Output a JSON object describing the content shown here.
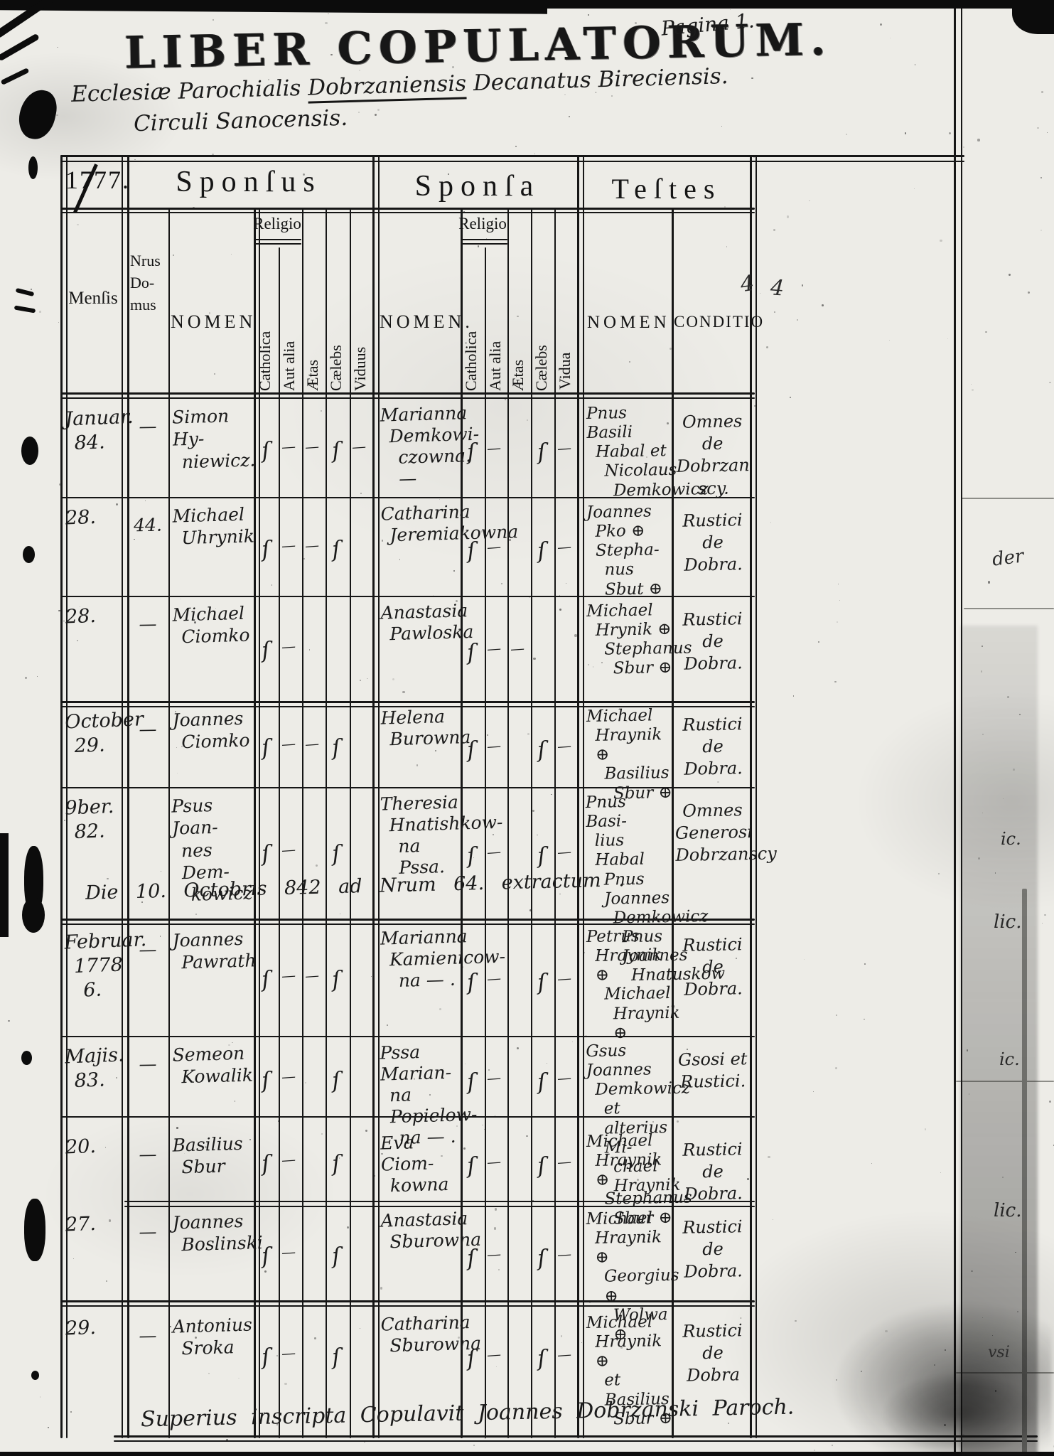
{
  "page": {
    "pagina": "Pagina 1.",
    "margin_marks": [
      "4",
      "4"
    ],
    "fragments": [
      "der",
      "ic.",
      "lic.",
      "ic.",
      "lic.",
      "vsi"
    ]
  },
  "title": "LIBER COPULATORUM.",
  "subtitle": {
    "line1_pre": "Ecclesiæ Parochialis",
    "line1_underlined": "Dobrzaniensis",
    "line1_post": "Decanatus Bireciensis.",
    "line2": "Circuli Sanocensis."
  },
  "header": {
    "year": "1777.",
    "sponsus": "Sponſus",
    "sponsa": "Sponſa",
    "testes": "Teſtes",
    "mensis": "Menſis",
    "nrus_domus": [
      "Nrus",
      "Do-",
      "mus"
    ],
    "nomen_sponsus": "NOMEN",
    "nomen_sponsa": "NOMEN.",
    "nomen_testes": "NOMEN",
    "conditio": "CONDITIO",
    "religio": "Religio",
    "catholica": "Catholica",
    "aut_alia": "Aut alia",
    "aetas": "Ætas",
    "caelebs": "Cælebs",
    "viduus": "Viduus",
    "vidua": "Vidua"
  },
  "rows": [
    {
      "mensis": [
        "Januar.",
        "84."
      ],
      "nrus": "—",
      "sponsus": [
        "Simon Hy-",
        "niewicz."
      ],
      "sp_marks": [
        "ſ",
        "—",
        "—",
        "ſ",
        "—"
      ],
      "sponsa": [
        "Marianna",
        "Demkowi-",
        "czowna. —"
      ],
      "sa_marks": [
        "ſ",
        "—",
        "",
        "ſ",
        "—"
      ],
      "testes": [
        "Pnus Basili",
        "Habal et",
        "Nicolaus",
        "Demkowicz"
      ],
      "conditio": [
        "Omnes",
        "de Dobrzan",
        "scy."
      ]
    },
    {
      "mensis": [
        "28."
      ],
      "nrus": "44.",
      "sponsus": [
        "Michael",
        "Uhrynik"
      ],
      "sp_marks": [
        "ſ",
        "—",
        "—",
        "ſ",
        ""
      ],
      "sponsa": [
        "Catharina",
        "Jeremiakowna"
      ],
      "sa_marks": [
        "ſ",
        "—",
        "",
        "ſ",
        "—"
      ],
      "testes": [
        "Joannes",
        "Pko ⊕ Stepha-",
        "nus Sbut ⊕"
      ],
      "conditio": [
        "Rustici",
        "de",
        "Dobra."
      ]
    },
    {
      "mensis": [
        "28."
      ],
      "nrus": "—",
      "sponsus": [
        "Michael",
        "Ciomko"
      ],
      "sp_marks": [
        "ſ",
        "—",
        "",
        "",
        ""
      ],
      "sponsa": [
        "Anastasia",
        "Pawloska"
      ],
      "sa_marks": [
        "ſ",
        "—",
        "—",
        "",
        ""
      ],
      "testes": [
        "Michael",
        "Hrynik ⊕",
        "Stephanus",
        "Sbur ⊕"
      ],
      "conditio": [
        "Rustici",
        "de",
        "Dobra."
      ]
    },
    {
      "mensis": [
        "October",
        "29."
      ],
      "nrus": "—",
      "sponsus": [
        "Joannes",
        "Ciomko"
      ],
      "sp_marks": [
        "ſ",
        "—",
        "—",
        "ſ",
        ""
      ],
      "sponsa": [
        "Helena",
        "Burowna"
      ],
      "sa_marks": [
        "ſ",
        "—",
        "",
        "ſ",
        "—"
      ],
      "testes": [
        "Michael",
        "Hraynik ⊕",
        "Basilius",
        "Sbur ⊕"
      ],
      "conditio": [
        "Rustici",
        "de",
        "Dobra."
      ]
    },
    {
      "mensis": [
        "9ber.",
        "82."
      ],
      "nrus": "",
      "sponsus": [
        "Psus Joan-",
        "nes Dem-",
        "kowicz"
      ],
      "sp_marks": [
        "ſ",
        "—",
        "",
        "ſ",
        ""
      ],
      "sponsa": [
        "Theresia",
        "Hnatishkow-",
        "na Pssa."
      ],
      "sa_marks": [
        "ſ",
        "—",
        "",
        "ſ",
        "—"
      ],
      "testes": [
        "Pnus Basi-",
        "lius Habal",
        "Pnus Joannes",
        "Demkowicz",
        "Pnus Joannes",
        "Hnatuskow"
      ],
      "conditio": [
        "Omnes",
        "Generosi",
        "Dobrzanscy"
      ],
      "note": "Die 10. Octobris 842 ad  Nrum  64.  extractum ."
    },
    {
      "mensis": [
        "Februar.",
        "1778",
        "6."
      ],
      "nrus": "—",
      "sponsus": [
        "Joannes",
        "Pawrath"
      ],
      "sp_marks": [
        "ſ",
        "—",
        "—",
        "ſ",
        ""
      ],
      "sponsa": [
        "Marianna",
        "Kamienicow-",
        "na — ."
      ],
      "sa_marks": [
        "ſ",
        "—",
        "",
        "ſ",
        "—"
      ],
      "testes": [
        "Petrus",
        "Hraynik ⊕",
        "Michael",
        "Hraynik ⊕"
      ],
      "conditio": [
        "Rustici",
        "de",
        "Dobra."
      ]
    },
    {
      "mensis": [
        "Majis.",
        "83."
      ],
      "nrus": "—",
      "sponsus": [
        "Semeon",
        "Kowalik"
      ],
      "sp_marks": [
        "ſ",
        "—",
        "",
        "ſ",
        ""
      ],
      "sponsa": [
        "Pssa Marian-",
        "na Popielow-",
        "na — ."
      ],
      "sa_marks": [
        "ſ",
        "—",
        "",
        "ſ",
        "—"
      ],
      "testes": [
        "Gsus Joannes",
        "Demkowicz",
        "et alterius Mi-",
        "chael Hraynik"
      ],
      "conditio": [
        "Gsosi et",
        "Rustici."
      ]
    },
    {
      "mensis": [
        "20."
      ],
      "nrus": "—",
      "sponsus": [
        "Basilius",
        "Sbur"
      ],
      "sp_marks": [
        "ſ",
        "—",
        "",
        "ſ",
        ""
      ],
      "sponsa": [
        "Eva Ciom-",
        "kowna"
      ],
      "sa_marks": [
        "ſ",
        "—",
        "",
        "ſ",
        "—"
      ],
      "testes": [
        "Michael",
        "Hraynik ⊕",
        "Stephanus",
        "Sbur ⊕"
      ],
      "conditio": [
        "Rustici",
        "de",
        "Dobra."
      ]
    },
    {
      "mensis": [
        "27."
      ],
      "nrus": "—",
      "sponsus": [
        "Joannes",
        "Boslinski"
      ],
      "sp_marks": [
        "ſ",
        "—",
        "",
        "ſ",
        ""
      ],
      "sponsa": [
        "Anastasia",
        "Sburowna"
      ],
      "sa_marks": [
        "ſ",
        "—",
        "",
        "ſ",
        "—"
      ],
      "testes": [
        "Michael",
        "Hraynik ⊕",
        "Georgius ⊕",
        "Wolwa ⊕"
      ],
      "conditio": [
        "Rustici",
        "de",
        "Dobra."
      ]
    },
    {
      "mensis": [
        "29."
      ],
      "nrus": "—",
      "sponsus": [
        "Antonius",
        "Sroka"
      ],
      "sp_marks": [
        "ſ",
        "—",
        "",
        "ſ",
        ""
      ],
      "sponsa": [
        "Catharina",
        "Sburowna"
      ],
      "sa_marks": [
        "ſ",
        "—",
        "",
        "ſ",
        "—"
      ],
      "testes": [
        "Michael",
        "Hraynik ⊕",
        "et Basilius",
        "Sbur ⊕"
      ],
      "conditio": [
        "Rustici",
        "de",
        "Dobra"
      ]
    }
  ],
  "footer": {
    "note": "Superius inscripta Copulavit Joannes Dobrzanski Paroch."
  }
}
